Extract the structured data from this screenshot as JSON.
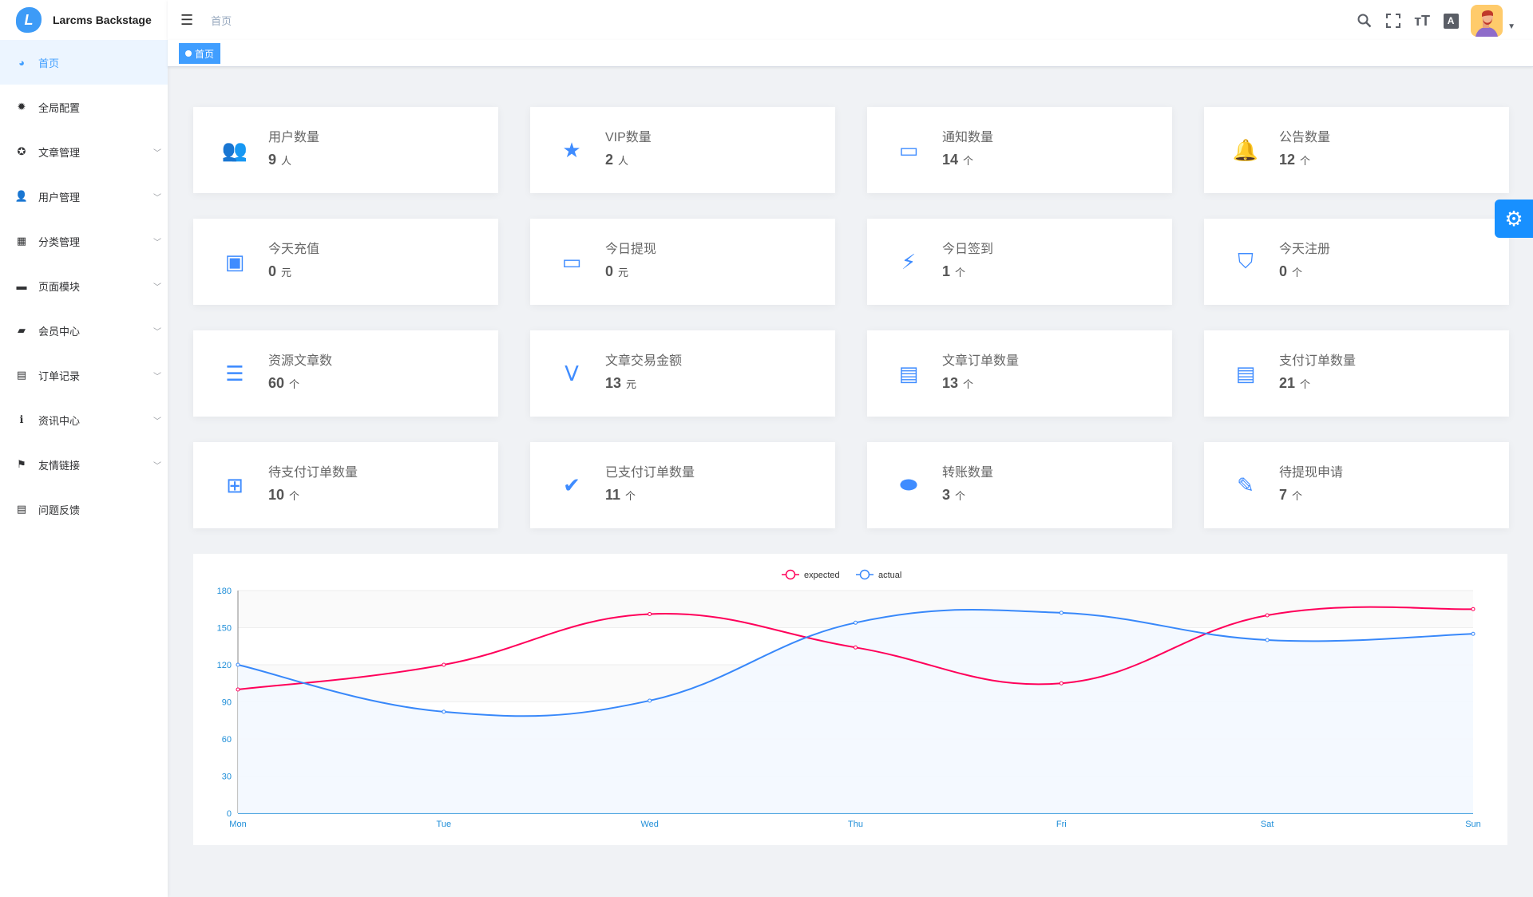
{
  "app": {
    "title": "Larcms Backstage",
    "logo_letter": "L"
  },
  "sidebar": {
    "items": [
      {
        "label": "首页",
        "icon": "dashboard-icon",
        "glyph": "◕",
        "active": true,
        "expandable": false
      },
      {
        "label": "全局配置",
        "icon": "gear-icon",
        "glyph": "✹",
        "expandable": false
      },
      {
        "label": "文章管理",
        "icon": "settings-icon",
        "glyph": "✪",
        "expandable": true
      },
      {
        "label": "用户管理",
        "icon": "user-icon",
        "glyph": "👤",
        "expandable": true
      },
      {
        "label": "分类管理",
        "icon": "grid-icon",
        "glyph": "▦",
        "expandable": true
      },
      {
        "label": "页面模块",
        "icon": "monitor-icon",
        "glyph": "▬",
        "expandable": true
      },
      {
        "label": "会员中心",
        "icon": "bag-icon",
        "glyph": "▰",
        "expandable": true
      },
      {
        "label": "订单记录",
        "icon": "wallet-icon",
        "glyph": "▤",
        "expandable": true
      },
      {
        "label": "资讯中心",
        "icon": "info-icon",
        "glyph": "ℹ",
        "expandable": true
      },
      {
        "label": "友情链接",
        "icon": "flag-icon",
        "glyph": "⚑",
        "expandable": true
      },
      {
        "label": "问题反馈",
        "icon": "document-icon",
        "glyph": "▤",
        "expandable": false
      }
    ]
  },
  "header": {
    "breadcrumb": "首页",
    "tag": "首页",
    "icons": [
      "search-icon",
      "fullscreen-icon",
      "font-size-icon",
      "translate-icon"
    ]
  },
  "cards": [
    {
      "label": "用户数量",
      "value": "9",
      "unit": "人",
      "icon": "users-icon",
      "glyph": "👥"
    },
    {
      "label": "VIP数量",
      "value": "2",
      "unit": "人",
      "icon": "vip-badge-icon",
      "glyph": "★"
    },
    {
      "label": "通知数量",
      "value": "14",
      "unit": "个",
      "icon": "message-icon",
      "glyph": "▭"
    },
    {
      "label": "公告数量",
      "value": "12",
      "unit": "个",
      "icon": "bell-icon",
      "glyph": "🔔"
    },
    {
      "label": "今天充值",
      "value": "0",
      "unit": "元",
      "icon": "wallet-icon",
      "glyph": "▣"
    },
    {
      "label": "今日提现",
      "value": "0",
      "unit": "元",
      "icon": "cash-icon",
      "glyph": "▭"
    },
    {
      "label": "今日签到",
      "value": "1",
      "unit": "个",
      "icon": "lightning-icon",
      "glyph": "⚡"
    },
    {
      "label": "今天注册",
      "value": "0",
      "unit": "个",
      "icon": "shield-icon",
      "glyph": "⛉"
    },
    {
      "label": "资源文章数",
      "value": "60",
      "unit": "个",
      "icon": "article-icon",
      "glyph": "☰"
    },
    {
      "label": "文章交易金额",
      "value": "13",
      "unit": "元",
      "icon": "vip-card-icon",
      "glyph": "Ⅴ"
    },
    {
      "label": "文章订单数量",
      "value": "13",
      "unit": "个",
      "icon": "order-icon",
      "glyph": "▤"
    },
    {
      "label": "支付订单数量",
      "value": "21",
      "unit": "个",
      "icon": "receipt-icon",
      "glyph": "▤"
    },
    {
      "label": "待支付订单数量",
      "value": "10",
      "unit": "个",
      "icon": "pending-order-icon",
      "glyph": "⊞"
    },
    {
      "label": "已支付订单数量",
      "value": "11",
      "unit": "个",
      "icon": "paid-order-icon",
      "glyph": "✔"
    },
    {
      "label": "转账数量",
      "value": "3",
      "unit": "个",
      "icon": "transfer-icon",
      "glyph": "⬬"
    },
    {
      "label": "待提现申请",
      "value": "7",
      "unit": "个",
      "icon": "withdraw-icon",
      "glyph": "✎"
    }
  ],
  "chart_data": {
    "type": "line",
    "categories": [
      "Mon",
      "Tue",
      "Wed",
      "Thu",
      "Fri",
      "Sat",
      "Sun"
    ],
    "series": [
      {
        "name": "expected",
        "values": [
          100,
          120,
          161,
          134,
          105,
          160,
          165
        ],
        "color": "#ff005a"
      },
      {
        "name": "actual",
        "values": [
          120,
          82,
          91,
          154,
          162,
          140,
          145
        ],
        "color": "#3888fa"
      }
    ],
    "ylim": [
      0,
      180
    ],
    "yticks": [
      "0",
      "30",
      "60",
      "90",
      "120",
      "150",
      "180"
    ],
    "legend": "top-center",
    "grid": true,
    "smooth": true
  },
  "colors": {
    "primary": "#409eff",
    "icon": "#3f8cff",
    "settings": "#1890ff"
  }
}
